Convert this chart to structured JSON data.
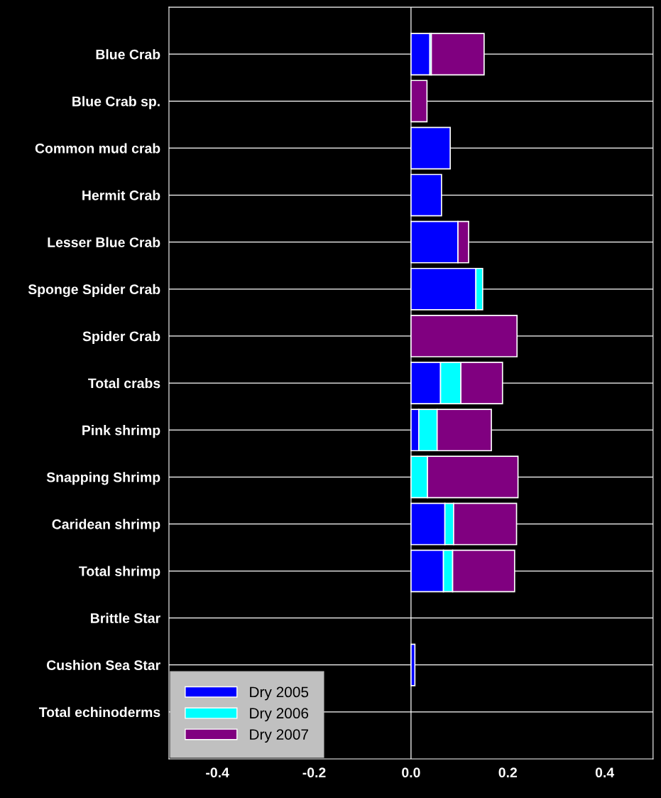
{
  "chart_data": {
    "type": "bar",
    "orientation": "horizontal",
    "stacked": true,
    "categories": [
      "Blue Crab",
      "Blue Crab sp.",
      "Common mud crab",
      "Hermit Crab",
      "Lesser Blue Crab",
      "Sponge Spider Crab",
      "Spider Crab",
      "Total crabs",
      "Pink shrimp",
      "Snapping Shrimp",
      "Caridean shrimp",
      "Total shrimp",
      "Brittle Star",
      "Cushion Sea Star",
      "Total echinoderms"
    ],
    "series": [
      {
        "name": "Dry 2005",
        "color": "#0000ff",
        "values": [
          0.039,
          null,
          0.081,
          0.063,
          0.097,
          0.134,
          null,
          0.061,
          0.016,
          null,
          0.07,
          0.067,
          null,
          0.008,
          null
        ]
      },
      {
        "name": "Dry 2006",
        "color": "#00ffff",
        "values": [
          0.003,
          null,
          null,
          null,
          null,
          0.014,
          null,
          0.042,
          0.038,
          0.034,
          0.018,
          0.019,
          null,
          null,
          null
        ]
      },
      {
        "name": "Dry 2007",
        "color": "#800080",
        "values": [
          0.109,
          0.033,
          null,
          null,
          0.022,
          null,
          0.219,
          0.086,
          0.112,
          0.187,
          0.13,
          0.128,
          null,
          null,
          null
        ]
      }
    ],
    "xlim": [
      -0.5,
      0.5
    ],
    "xticks": [
      {
        "value": -0.4,
        "label": "-0.4"
      },
      {
        "value": -0.2,
        "label": "-0.2"
      },
      {
        "value": 0.0,
        "label": "0.0"
      },
      {
        "value": 0.2,
        "label": "0.2"
      },
      {
        "value": 0.4,
        "label": "0.4"
      }
    ],
    "ref_lines": [
      {
        "axis": "x",
        "value": 0,
        "color": "#ffffff"
      }
    ],
    "grid": "y",
    "legend": "bottom left"
  }
}
